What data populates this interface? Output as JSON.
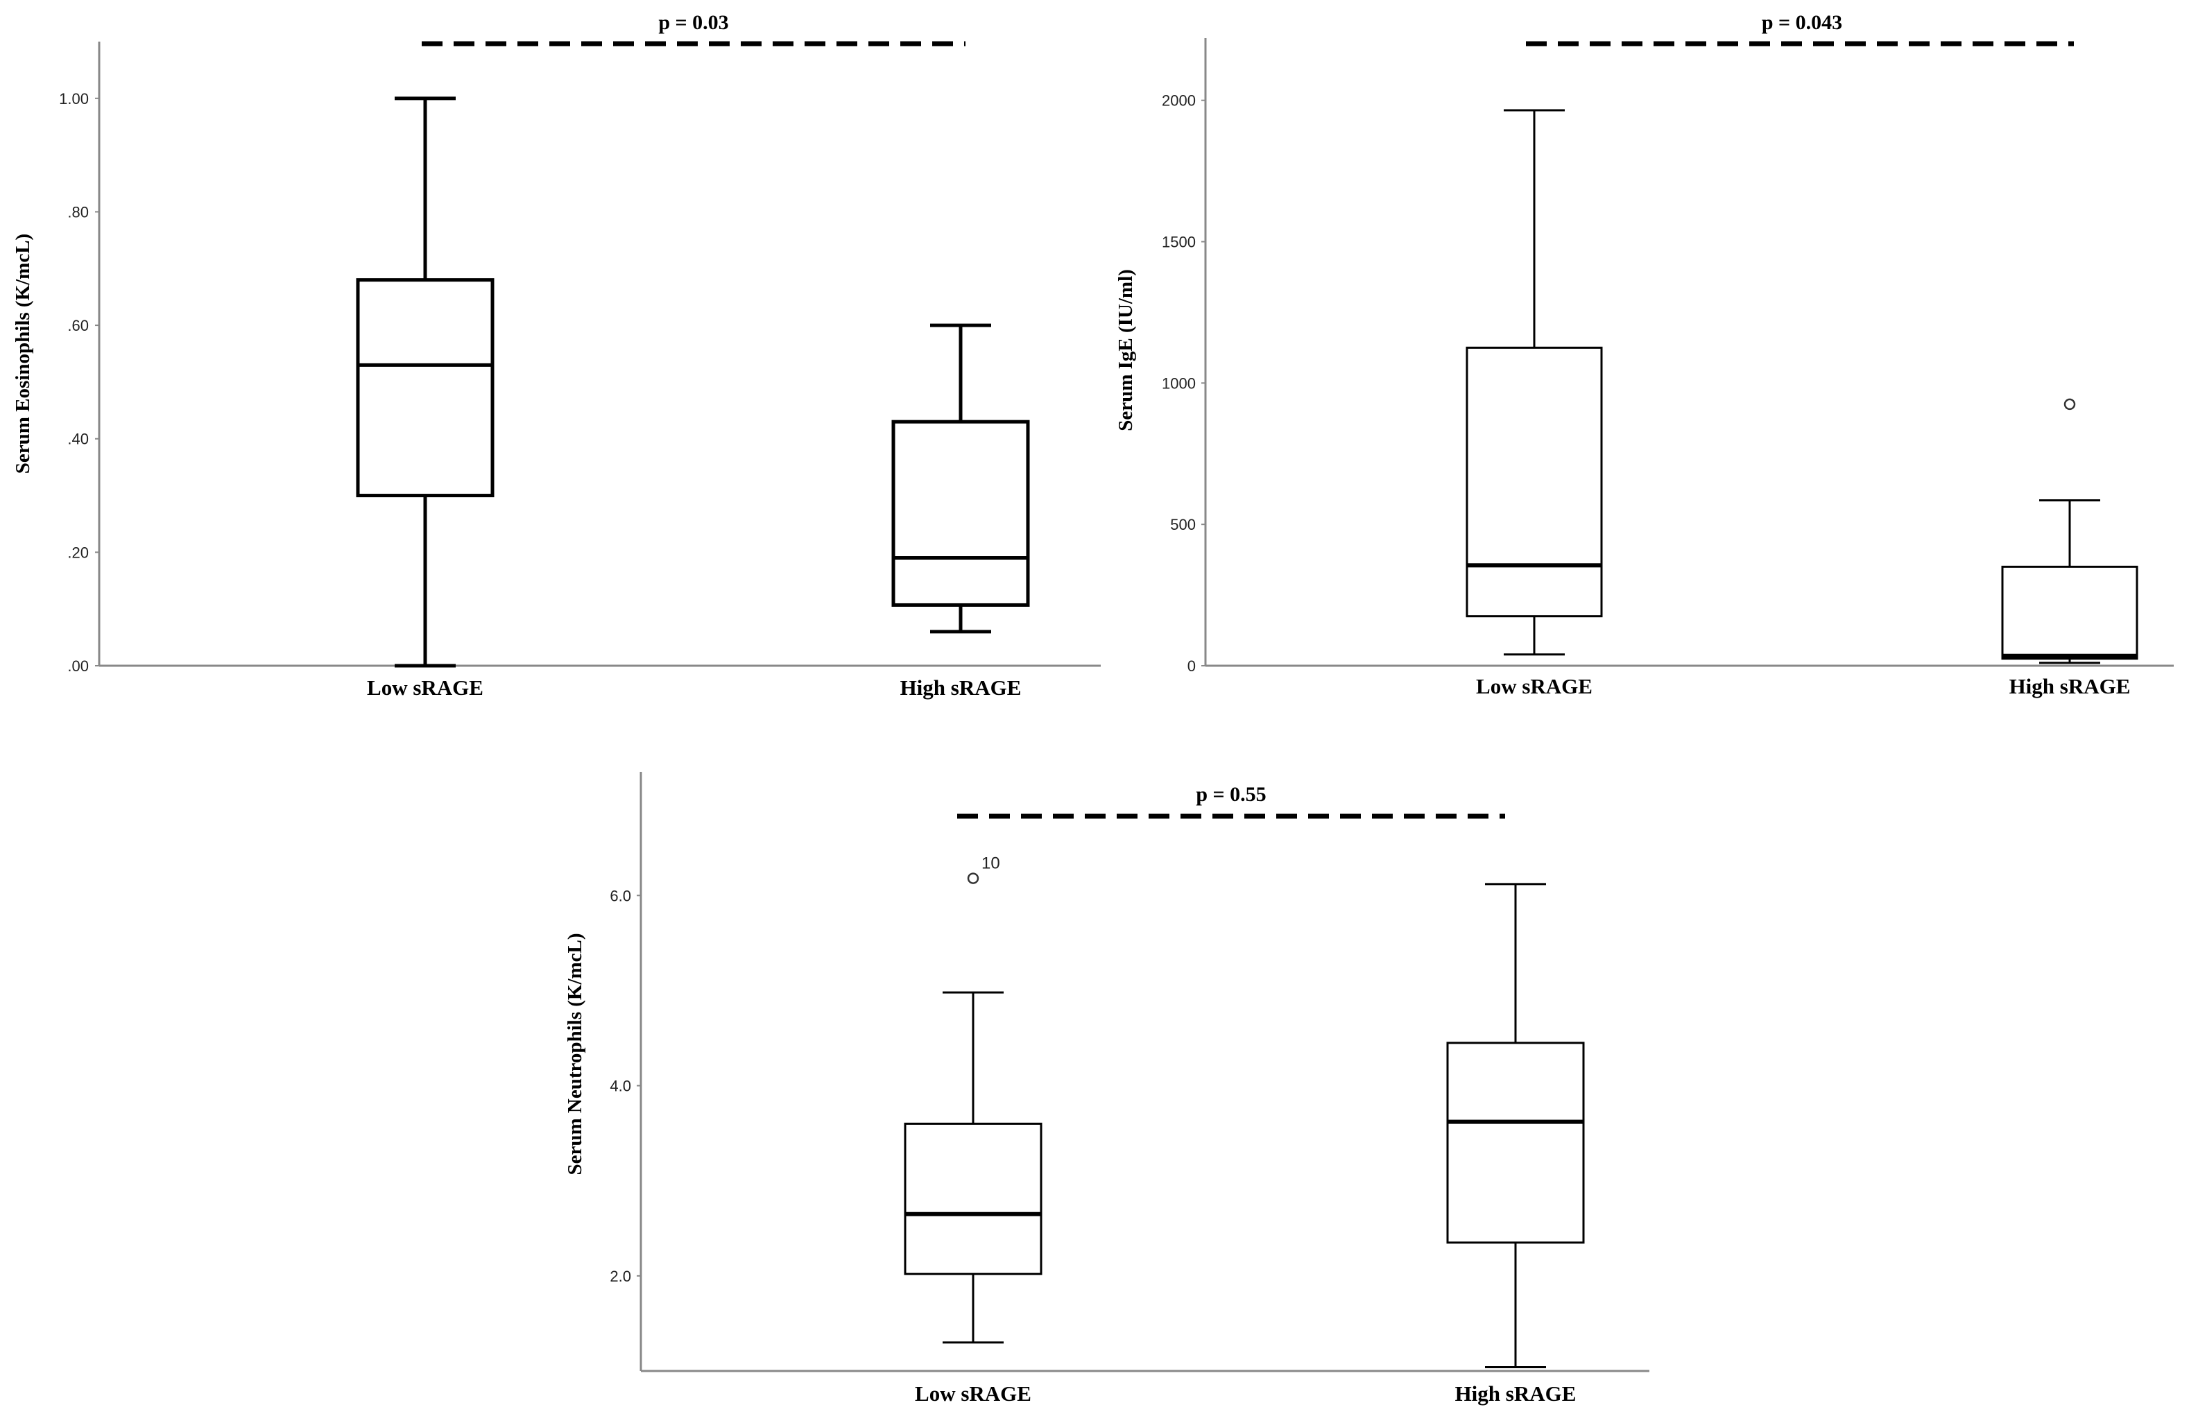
{
  "chart_data": [
    {
      "type": "box",
      "ylabel": "Serum Eosinophils (K/mcL)",
      "ylim": [
        0,
        1.1
      ],
      "yticks": [
        0,
        0.2,
        0.4,
        0.6,
        0.8,
        1.0
      ],
      "ytick_labels": [
        ".00",
        ".20",
        ".40",
        ".60",
        ".80",
        "1.00"
      ],
      "categories": [
        "Low sRAGE",
        "High sRAGE"
      ],
      "boxes": [
        {
          "whisker_low": 0.0,
          "q1": 0.3,
          "median": 0.53,
          "q3": 0.68,
          "whisker_high": 1.0,
          "outliers": []
        },
        {
          "whisker_low": 0.06,
          "q1": 0.107,
          "median": 0.19,
          "q3": 0.43,
          "whisker_high": 0.6,
          "outliers": []
        }
      ],
      "annotation": "p = 0.03",
      "style": "bold"
    },
    {
      "type": "box",
      "ylabel": "Serum IgE (IU/ml)",
      "ylim": [
        0,
        2220
      ],
      "yticks": [
        0,
        500,
        1000,
        1500,
        2000
      ],
      "ytick_labels": [
        "0",
        "500",
        "1000",
        "1500",
        "2000"
      ],
      "categories": [
        "Low sRAGE",
        "High sRAGE"
      ],
      "boxes": [
        {
          "whisker_low": 40,
          "q1": 175,
          "median": 355,
          "q3": 1125,
          "whisker_high": 1965,
          "outliers": []
        },
        {
          "whisker_low": 10,
          "q1": 25,
          "median": 35,
          "q3": 350,
          "whisker_high": 585,
          "outliers": [
            {
              "value": 925,
              "label": ""
            }
          ]
        }
      ],
      "annotation": "p = 0.043",
      "style": "thin"
    },
    {
      "type": "box",
      "ylabel": "Serum Neutrophils (K/mcL)",
      "ylim": [
        1.0,
        7.3
      ],
      "yticks": [
        2.0,
        4.0,
        6.0
      ],
      "ytick_labels": [
        "2.0",
        "4.0",
        "6.0"
      ],
      "categories": [
        "Low sRAGE",
        "High sRAGE"
      ],
      "boxes": [
        {
          "whisker_low": 1.3,
          "q1": 2.02,
          "median": 2.65,
          "q3": 3.6,
          "whisker_high": 4.98,
          "outliers": [
            {
              "value": 6.18,
              "label": "10"
            }
          ]
        },
        {
          "whisker_low": 1.04,
          "q1": 2.35,
          "median": 3.62,
          "q3": 4.45,
          "whisker_high": 6.12,
          "outliers": []
        }
      ],
      "annotation": "p = 0.55",
      "style": "thin"
    }
  ]
}
